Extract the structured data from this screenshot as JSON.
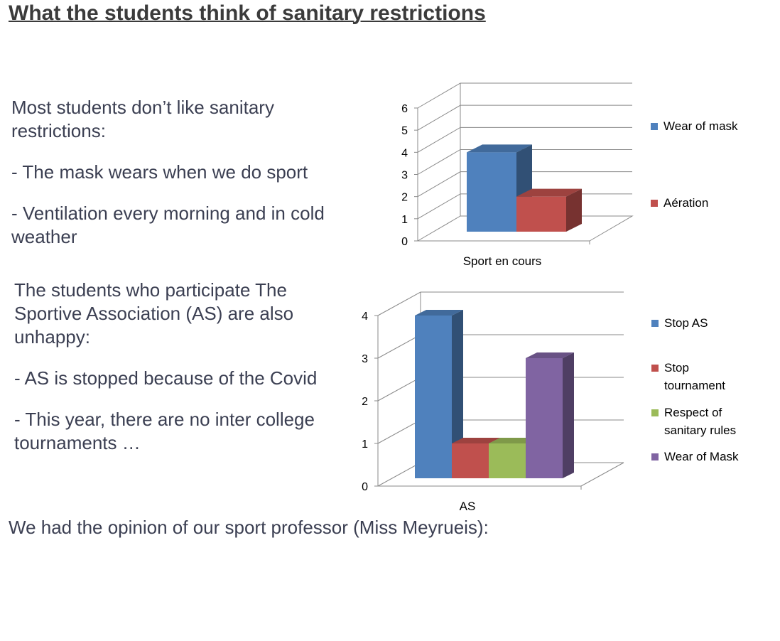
{
  "title": "What the students think of sanitary restrictions",
  "section1": {
    "intro_l1": "Most students don’t like sanitary",
    "intro_l2": "restrictions:",
    "point1": "- The mask wears when we do sport",
    "point2_l1": "- Ventilation every morning and in cold",
    "point2_l2": "weather"
  },
  "section2": {
    "intro_l1": "The students who participate The",
    "intro_l2": "Sportive Association (AS) are also",
    "intro_l3": "unhappy:",
    "point1": "- AS is stopped because of the Covid",
    "point2_l1": "- This year, there are no inter college",
    "point2_l2": "tournaments …"
  },
  "closing": "We had the opinion of our sport professor (Miss Meyrueis):",
  "chart_data": [
    {
      "type": "bar",
      "style": "3d-clustered-column",
      "categories": [
        "Sport en cours"
      ],
      "series": [
        {
          "name": "Wear of mask",
          "values": [
            4
          ],
          "color": "#4f81bd"
        },
        {
          "name": "Aération",
          "values": [
            2
          ],
          "color": "#c0504d"
        }
      ],
      "ylim": [
        0,
        6
      ],
      "yticks": [
        "0",
        "1",
        "2",
        "3",
        "4",
        "5",
        "6"
      ],
      "grid": true,
      "legend": "right"
    },
    {
      "type": "bar",
      "style": "3d-clustered-column",
      "categories": [
        "AS"
      ],
      "series": [
        {
          "name": "Stop AS",
          "values": [
            4
          ],
          "color": "#4f81bd"
        },
        {
          "name": "Stop tournament",
          "values": [
            1
          ],
          "color": "#c0504d"
        },
        {
          "name": "Respect of sanitary rules",
          "values": [
            1
          ],
          "color": "#9bbb59"
        },
        {
          "name": "Wear of Mask",
          "values": [
            3
          ],
          "color": "#8064a2"
        }
      ],
      "ylim": [
        0,
        4
      ],
      "yticks": [
        "0",
        "1",
        "2",
        "3",
        "4"
      ],
      "grid": true,
      "legend": "right"
    }
  ]
}
